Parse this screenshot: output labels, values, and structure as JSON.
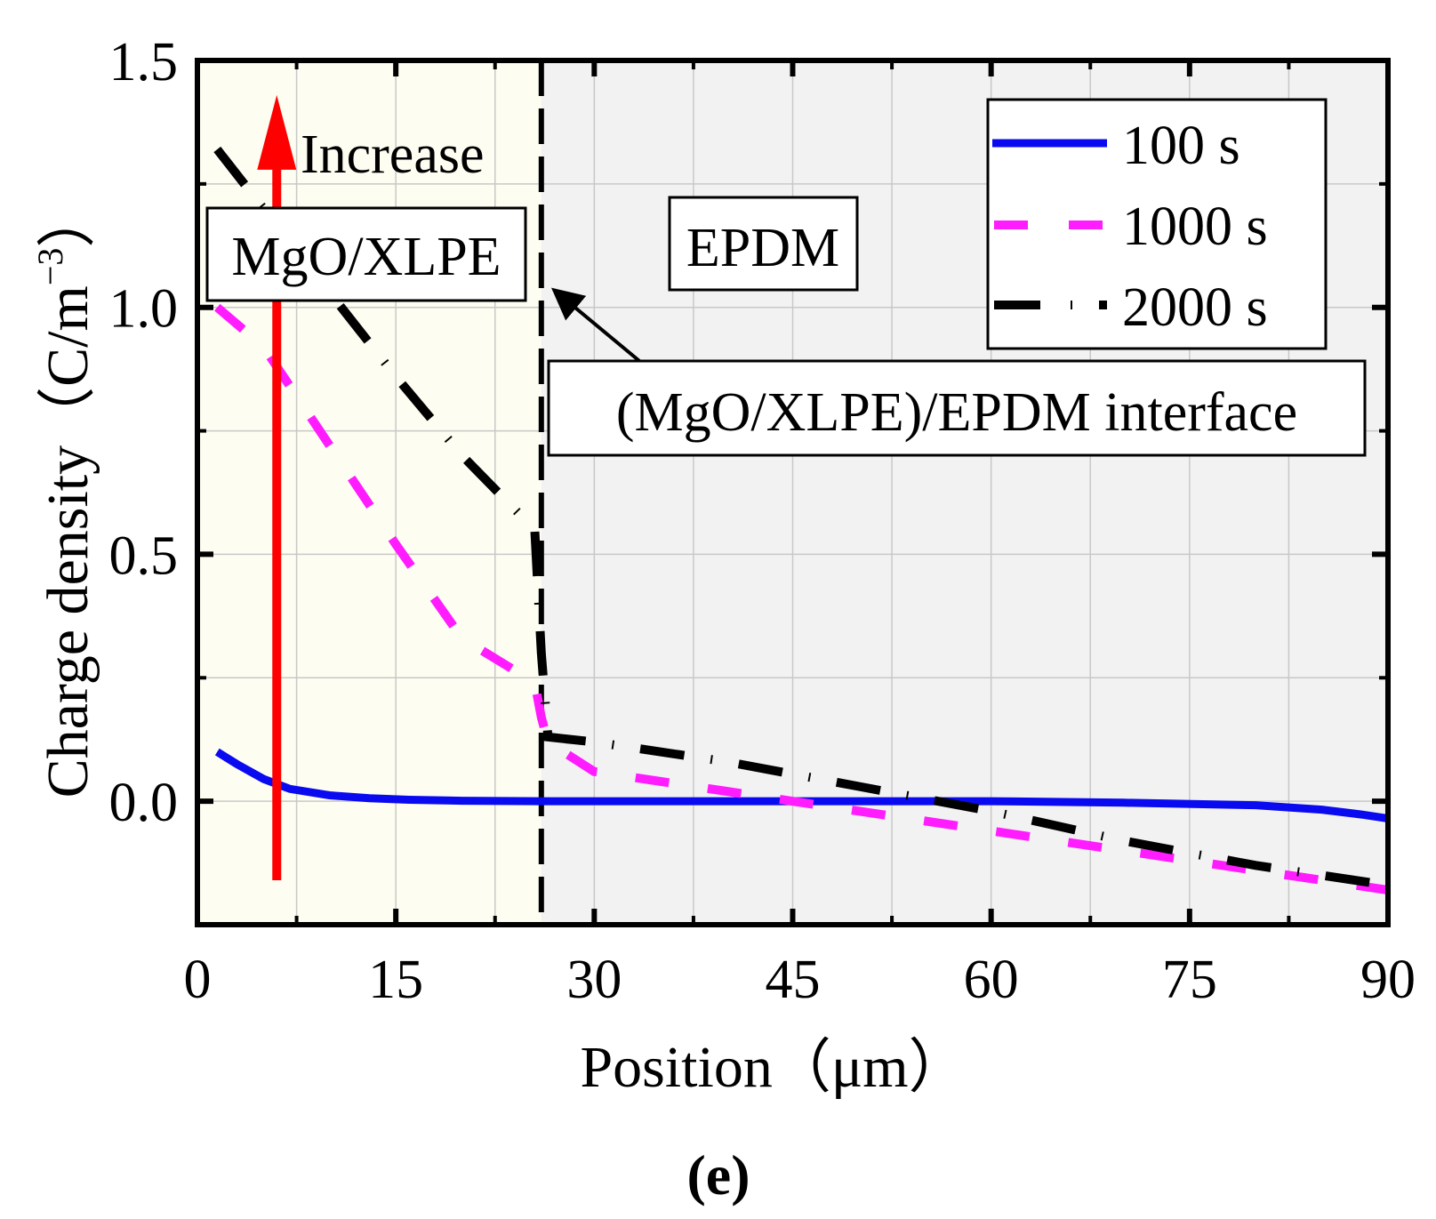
{
  "chart_data": {
    "type": "line",
    "xlabel": "Position（μm）",
    "ylabel_main": "Charge density（C/m",
    "ylabel_sup": "−3",
    "ylabel_close": "）",
    "xlim": [
      0,
      90
    ],
    "ylim": [
      -0.25,
      1.5
    ],
    "xticks": [
      "0",
      "15",
      "30",
      "45",
      "60",
      "75",
      "90"
    ],
    "xtick_values": [
      0,
      15,
      30,
      45,
      60,
      75,
      90
    ],
    "yticks": [
      "0.0",
      "0.5",
      "1.0",
      "1.5"
    ],
    "ytick_values": [
      0,
      0.5,
      1.0,
      1.5
    ],
    "grid": true,
    "legend_position": "top-right",
    "regions": [
      {
        "name": "MgO/XLPE",
        "x": [
          0,
          26
        ],
        "color": "#fdfdf1"
      },
      {
        "name": "EPDM",
        "x": [
          26,
          90
        ],
        "color": "#f2f2f2"
      }
    ],
    "interface_x": 26,
    "series": [
      {
        "name": "100 s",
        "color": "#0a0af0",
        "style": "solid",
        "x": [
          1.5,
          3,
          5,
          7,
          10,
          13,
          16,
          20,
          26,
          30,
          40,
          50,
          60,
          70,
          80,
          85,
          88,
          90
        ],
        "y": [
          0.1,
          0.075,
          0.045,
          0.025,
          0.012,
          0.006,
          0.003,
          0.001,
          0.0,
          0.0,
          0.0,
          0.0,
          0.0,
          -0.003,
          -0.008,
          -0.017,
          -0.027,
          -0.035
        ]
      },
      {
        "name": "1000 s",
        "color": "#ff1cff",
        "style": "dashed",
        "x": [
          1.5,
          5,
          10,
          15,
          20,
          25.5,
          26,
          26.5,
          30,
          40,
          50,
          60,
          70,
          80,
          90
        ],
        "y": [
          1.0,
          0.92,
          0.72,
          0.52,
          0.33,
          0.24,
          0.17,
          0.12,
          0.06,
          0.02,
          -0.02,
          -0.06,
          -0.1,
          -0.14,
          -0.18
        ]
      },
      {
        "name": "2000 s",
        "color": "#000000",
        "style": "dashdot",
        "x": [
          1.5,
          5,
          10,
          15,
          20,
          25.5,
          26,
          26.5,
          30,
          40,
          50,
          60,
          70,
          80,
          90
        ],
        "y": [
          1.32,
          1.2,
          1.03,
          0.86,
          0.7,
          0.55,
          0.3,
          0.13,
          0.12,
          0.08,
          0.03,
          -0.02,
          -0.08,
          -0.13,
          -0.17
        ]
      }
    ],
    "annotations": {
      "increase": "Increase",
      "mgo_xlpe": "MgO/XLPE",
      "epdm": "EPDM",
      "interface": "(MgO/XLPE)/EPDM interface"
    },
    "increase_arrow": {
      "x": 6,
      "y_from": -0.16,
      "y_to": 1.43,
      "color": "#ff0000"
    },
    "interface_arrow_target": {
      "x": 26.4,
      "y": 1.05
    },
    "panel_label": "(e)"
  }
}
